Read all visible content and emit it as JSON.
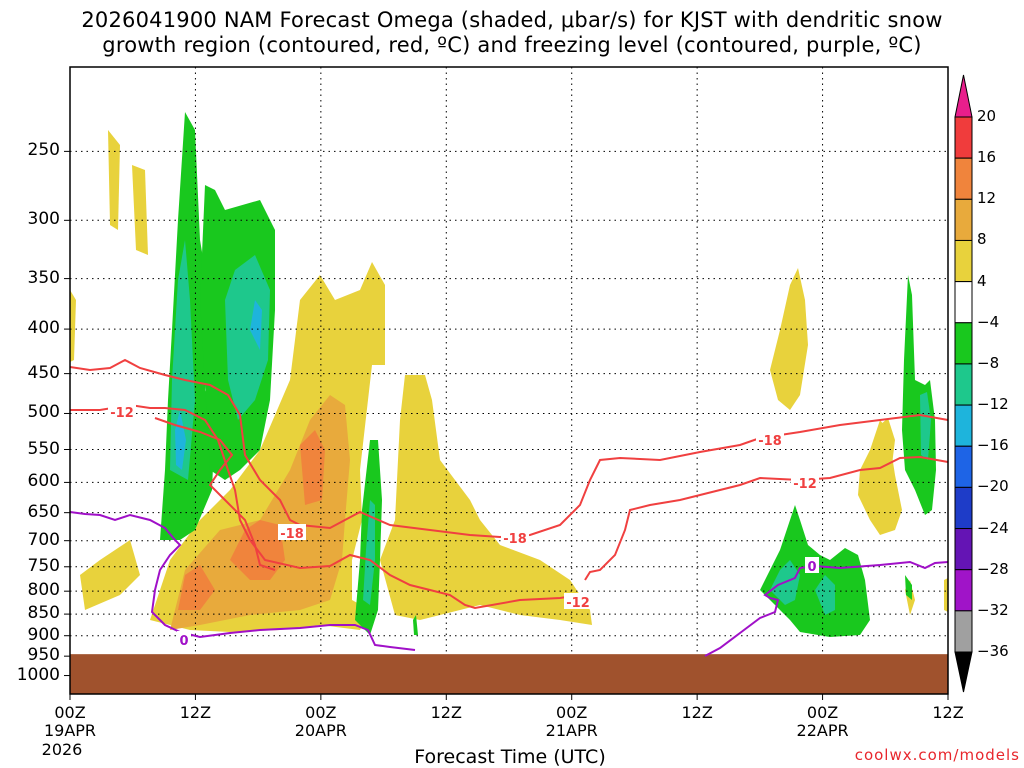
{
  "chart_data": {
    "type": "contour",
    "title_line1": "2026041900 NAM Forecast Omega (shaded, μbar/s) for KJST with dendritic snow",
    "title_line2": "growth region (contoured, red, ºC) and freezing level (contoured, purple, ºC)",
    "xlabel": "Forecast Time (UTC)",
    "credit": "coolwx.com/models",
    "y_axis": {
      "scale": "log-pressure",
      "range": [
        1050,
        200
      ],
      "ticks": [
        "250",
        "300",
        "350",
        "400",
        "450",
        "500",
        "550",
        "600",
        "650",
        "700",
        "750",
        "800",
        "850",
        "900",
        "950",
        "1000"
      ]
    },
    "x_axis": {
      "range": [
        "2026-04-19 00Z",
        "2026-04-22 12Z"
      ],
      "ticks": [
        {
          "label": "00Z",
          "date": "19APR",
          "year": "2026"
        },
        {
          "label": "12Z",
          "date": "",
          "year": ""
        },
        {
          "label": "00Z",
          "date": "20APR",
          "year": ""
        },
        {
          "label": "12Z",
          "date": "",
          "year": ""
        },
        {
          "label": "00Z",
          "date": "21APR",
          "year": ""
        },
        {
          "label": "12Z",
          "date": "",
          "year": ""
        },
        {
          "label": "00Z",
          "date": "22APR",
          "year": ""
        },
        {
          "label": "12Z",
          "date": "",
          "year": ""
        }
      ],
      "grid": true
    },
    "colorbar": {
      "labels": [
        "20",
        "16",
        "12",
        "8",
        "4",
        "−4",
        "−8",
        "−12",
        "−16",
        "−20",
        "−24",
        "−28",
        "−32",
        "−36"
      ],
      "colors": [
        "#e81e8c",
        "#f03c3c",
        "#f0843c",
        "#e8aa3c",
        "#e8d23c",
        "#ffffff",
        "#19c81e",
        "#1ec88c",
        "#1eb4dc",
        "#1e64e6",
        "#1e3cc8",
        "#6414b4",
        "#a014c8",
        "#a0a0a0",
        "#000000"
      ]
    },
    "contour_labels": {
      "red": [
        "-12",
        "-18",
        "-18",
        "-12",
        "-18",
        "-12"
      ],
      "purple": [
        "0",
        "0"
      ]
    },
    "colors": {
      "dgz": "#f04040",
      "freezing": "#a010c8",
      "ground": "#a0522d"
    }
  }
}
